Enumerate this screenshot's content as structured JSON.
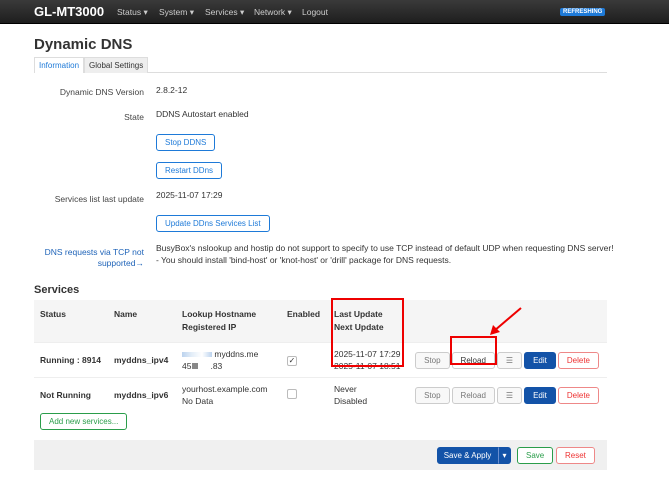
{
  "nav": {
    "brand": "GL-MT3000",
    "menu": [
      "Status ▾",
      "System ▾",
      "Services ▾",
      "Network ▾",
      "Logout"
    ],
    "badge": "REFRESHING"
  },
  "page": {
    "title": "Dynamic DNS",
    "tabs": [
      "Information",
      "Global Settings"
    ]
  },
  "info": {
    "version_label": "Dynamic DNS Version",
    "version": "2.8.2-12",
    "state_label": "State",
    "state": "DDNS Autostart enabled",
    "stop_btn": "Stop DDNS",
    "restart_btn": "Restart DDns",
    "list_label": "Services list last update",
    "list_update": "2025-11-07 17:29",
    "update_btn": "Update DDns Services List",
    "tcp_label": "DNS requests via TCP not supported→",
    "tcp_msg1": "BusyBox's nslookup and hostip do not support to specify to use TCP instead of default UDP when requesting DNS server!",
    "tcp_msg2": "- You should install 'bind-host' or 'knot-host' or 'drill' package for DNS requests."
  },
  "services": {
    "title": "Services",
    "headers": {
      "status": "Status",
      "name": "Name",
      "lookup": "Lookup Hostname",
      "ip": "Registered IP",
      "enabled": "Enabled",
      "last": "Last Update",
      "next": "Next Update"
    },
    "rows": [
      {
        "status": "Running : 8914",
        "name": "myddns_ipv4",
        "host": "myddns.me",
        "ip_a": "45",
        "ip_b": ".83",
        "enabled": true,
        "last": "2025-11-07 17:29",
        "next": "2025-11-07 18:51"
      },
      {
        "status": "Not Running",
        "name": "myddns_ipv6",
        "host": "yourhost.example.com",
        "ip": "No Data",
        "enabled": false,
        "last": "Never",
        "next": "Disabled"
      }
    ],
    "actions": {
      "stop": "Stop",
      "reload": "Reload",
      "menu": "☰",
      "edit": "Edit",
      "delete": "Delete"
    },
    "add_btn": "Add new services..."
  },
  "footer": {
    "save_apply": "Save & Apply",
    "save": "Save",
    "reset": "Reset"
  },
  "colors": {
    "accent": "#1e7ad8",
    "primary": "#1353a8",
    "danger": "#e33333",
    "highlight": "#e00000",
    "save": "#2a9d4a"
  }
}
